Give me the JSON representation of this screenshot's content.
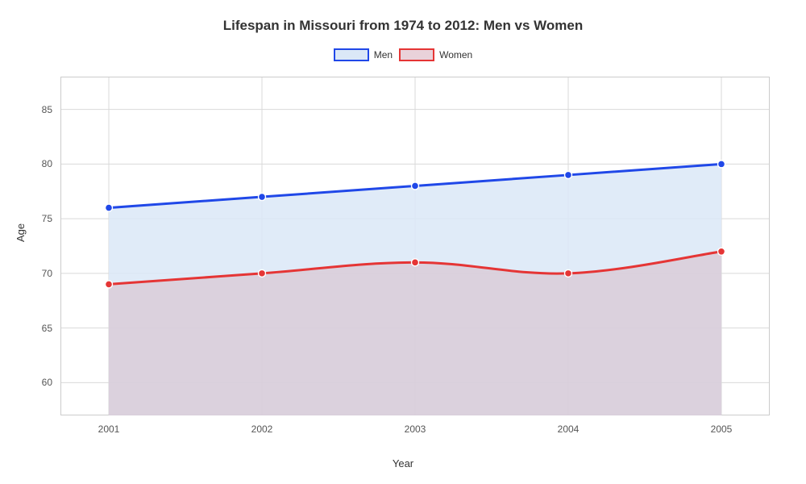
{
  "chart": {
    "type": "area-line",
    "title": "Lifespan in Missouri from 1974 to 2012: Men vs Women",
    "xlabel": "Year",
    "ylabel": "Age",
    "background_color": "#ffffff",
    "grid_color": "#d9d9d9",
    "plot_border_color": "#cccccc",
    "tick_color": "#555555",
    "title_fontsize": 17,
    "label_fontsize": 13,
    "tick_fontsize": 12,
    "x_categories": [
      "2001",
      "2002",
      "2003",
      "2004",
      "2005"
    ],
    "ylim": [
      57,
      88
    ],
    "y_ticks": [
      60,
      65,
      70,
      75,
      80,
      85
    ],
    "line_width": 3,
    "marker_radius": 4.5,
    "series": [
      {
        "name": "Men",
        "color": "#2048e8",
        "fill": "#dbe8f7",
        "fill_opacity": 0.85,
        "values": [
          76,
          77,
          78,
          79,
          80
        ],
        "smooth": false
      },
      {
        "name": "Women",
        "color": "#e53535",
        "fill": "#d7c0cb",
        "fill_opacity": 0.6,
        "values": [
          69,
          70,
          71,
          70,
          72
        ],
        "smooth": true
      }
    ],
    "legend": {
      "position": "top-center",
      "swatch_width": 44,
      "swatch_height": 16,
      "items": [
        {
          "label": "Men",
          "border": "#2048e8",
          "fill": "#dbe8f7"
        },
        {
          "label": "Women",
          "border": "#e53535",
          "fill": "#e9d2da"
        }
      ]
    }
  }
}
